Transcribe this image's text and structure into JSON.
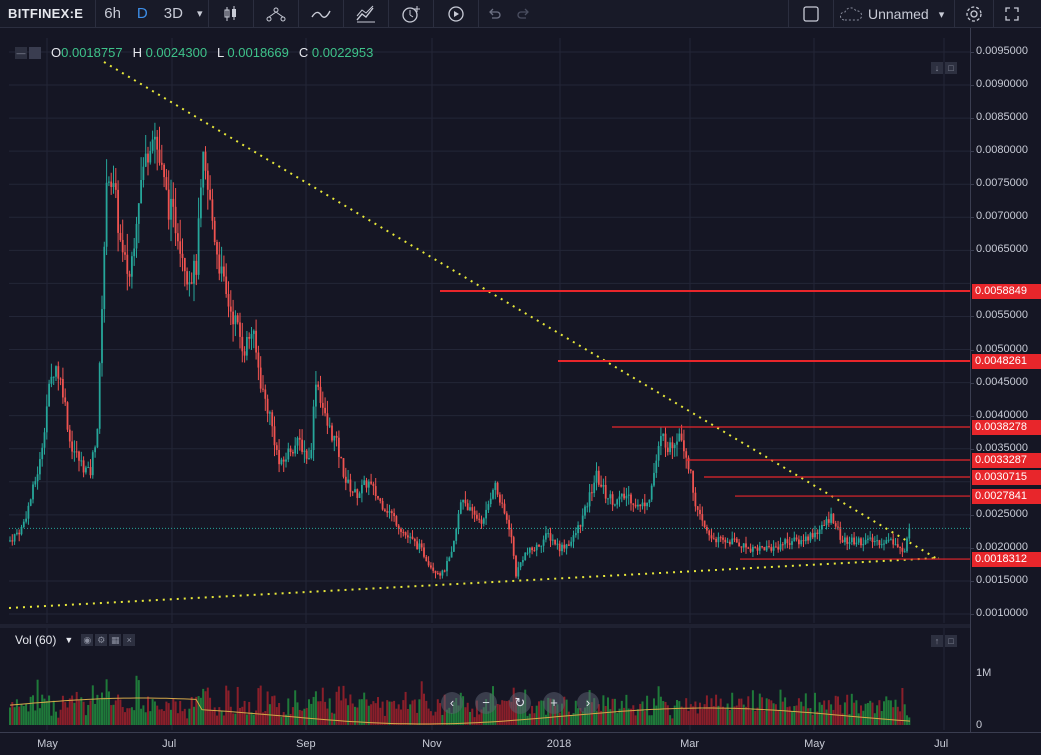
{
  "toolbar": {
    "symbol": "BITFINEX:E",
    "interval": "6h",
    "range_d": "D",
    "range_3d": "3D",
    "layout_name": "Unnamed"
  },
  "legend": {
    "o_label": "O",
    "o_value": "0.0018757",
    "h_label": "H",
    "h_value": "0.0024300",
    "l_label": "L",
    "l_value": "0.0018669",
    "c_label": "C",
    "c_value": "0.0022953"
  },
  "volume": {
    "label": "Vol (60)",
    "axis": [
      "1M",
      "0"
    ]
  },
  "price_axis": {
    "ticks": [
      "0.0095000",
      "0.0090000",
      "0.0085000",
      "0.0080000",
      "0.0075000",
      "0.0070000",
      "0.0065000",
      "0.0060000",
      "0.0055000",
      "0.0050000",
      "0.0045000",
      "0.0040000",
      "0.0035000",
      "0.0030000",
      "0.0025000",
      "0.0020000",
      "0.0015000",
      "0.0010000"
    ]
  },
  "levels": [
    {
      "label": "0.0058849"
    },
    {
      "label": "0.0048261"
    },
    {
      "label": "0.0038278"
    },
    {
      "label": "0.0033287"
    },
    {
      "label": "0.0030715"
    },
    {
      "label": "0.0027841"
    },
    {
      "label": "0.0018312"
    }
  ],
  "time_axis": [
    "May",
    "Jul",
    "Sep",
    "Nov",
    "2018",
    "Mar",
    "May",
    "Jul"
  ],
  "colors": {
    "up": "#26a69a",
    "down": "#ef5350",
    "level": "#e8262b",
    "trend": "#e8e83a",
    "bg": "#151624"
  },
  "chart_data": {
    "type": "candlestick",
    "series": [
      {
        "name": "",
        "values": [
          0.0022,
          0.0027,
          0.0048,
          0.0032,
          0.004,
          0.008,
          0.006,
          0.0085,
          0.007,
          0.008,
          0.0058,
          0.0048,
          0.0037,
          0.0034,
          0.0047,
          0.0036,
          0.0028,
          0.0025,
          0.0021,
          0.0016,
          0.003,
          0.0022,
          0.0031,
          0.0018,
          0.0024,
          0.002,
          0.0034,
          0.0027,
          0.003,
          0.0039,
          0.0036,
          0.0024,
          0.0021,
          0.002,
          0.0019,
          0.0021,
          0.0024,
          0.0021,
          0.002,
          0.0019,
          0.0023
        ]
      }
    ],
    "levels": [
      0.0058849,
      0.0048261,
      0.0038278,
      0.0033287,
      0.0030715,
      0.0027841,
      0.0018312
    ],
    "ylim": [
      0.0008,
      0.0098
    ]
  }
}
